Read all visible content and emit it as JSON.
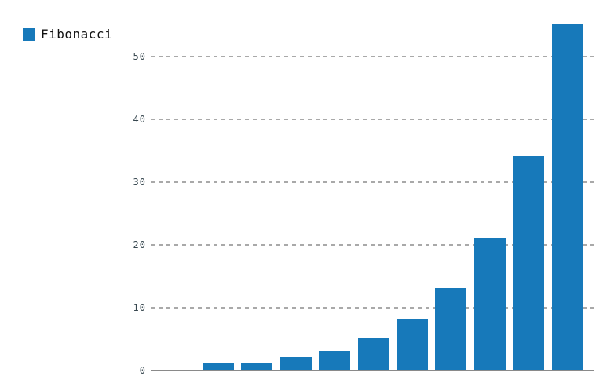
{
  "chart_data": {
    "type": "bar",
    "title": "",
    "xlabel": "",
    "ylabel": "",
    "series": [
      {
        "name": "Fibonacci",
        "values": [
          1,
          1,
          2,
          3,
          5,
          8,
          13,
          21,
          34,
          55
        ]
      }
    ],
    "x_tick_labels": [],
    "yticks": [
      0,
      10,
      20,
      30,
      40,
      50
    ],
    "ylim": [
      0,
      56
    ],
    "grid": "horizontal-dashed",
    "legend_position": "top-left"
  },
  "legend": {
    "items": [
      {
        "label": "Fibonacci",
        "color": "#1779ba"
      }
    ]
  },
  "colors": {
    "bar": "#1779ba",
    "legend_swatch": "#1779ba",
    "legend_text": "#111111",
    "tick_label": "#37474f",
    "gridline": "#a9a9a9",
    "axis_line": "#8a8a8a",
    "background": "#ffffff"
  }
}
